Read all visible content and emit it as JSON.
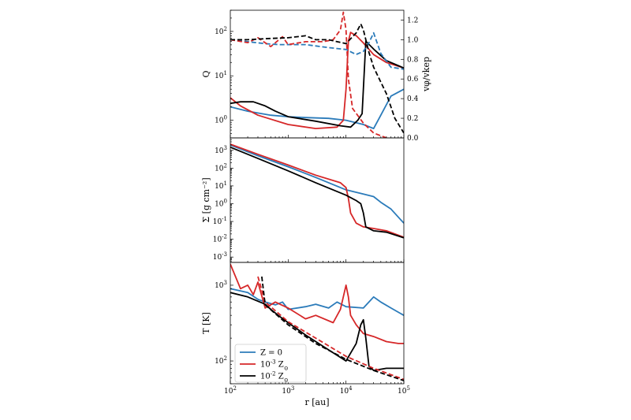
{
  "colors": {
    "z0": "#2b7bba",
    "z3": "#d62728",
    "z2": "#000000"
  },
  "chart_data": [
    {
      "type": "line",
      "panel": "top",
      "xscale": "log",
      "xlim": [
        100,
        100000
      ],
      "yscale": "log",
      "ylim": [
        0.4,
        300
      ],
      "ylabel": "Q",
      "y2label": "v_φ/v_kep",
      "y2lim": [
        0.0,
        1.3
      ],
      "ytick_labels": [
        "10^0",
        "10^1",
        "10^2"
      ],
      "y2tick_labels": [
        "0.0",
        "0.2",
        "0.4",
        "0.6",
        "0.8",
        "1.0",
        "1.2"
      ],
      "series": [
        {
          "name": "Z = 0",
          "quantity": "Q",
          "style": "solid",
          "color": "#2b7bba",
          "x": [
            100,
            200,
            500,
            1000,
            2000,
            5000,
            10000,
            20000,
            30000,
            40000,
            60000,
            100000
          ],
          "y": [
            2.0,
            1.6,
            1.3,
            1.2,
            1.15,
            1.1,
            1.0,
            0.8,
            0.65,
            1.3,
            3.5,
            5.0
          ]
        },
        {
          "name": "10^-3 Z_⊙",
          "quantity": "Q",
          "style": "solid",
          "color": "#d62728",
          "x": [
            100,
            150,
            300,
            1000,
            3000,
            7000,
            9000,
            10000,
            11000,
            12000,
            15000,
            20000,
            30000,
            50000,
            100000
          ],
          "y": [
            3.2,
            2.1,
            1.3,
            0.8,
            0.65,
            0.7,
            1.0,
            5.0,
            60.0,
            95.0,
            80.0,
            55.0,
            30.0,
            20.0,
            15.0
          ]
        },
        {
          "name": "10^-2 Z_⊙",
          "quantity": "Q",
          "style": "solid",
          "color": "#000000",
          "x": [
            100,
            150,
            250,
            400,
            600,
            1000,
            3000,
            8000,
            12000,
            16000,
            19000,
            22000,
            30000,
            50000,
            100000
          ],
          "y": [
            2.4,
            2.6,
            2.6,
            2.1,
            1.6,
            1.2,
            0.95,
            0.75,
            0.7,
            1.0,
            1.4,
            60.0,
            40.0,
            22.0,
            15.0
          ]
        },
        {
          "name": "Z = 0",
          "quantity": "v_phi/v_kep",
          "axis": "right",
          "style": "dashed",
          "color": "#2b7bba",
          "x": [
            100,
            200,
            400,
            700,
            1000,
            2000,
            5000,
            10000,
            15000,
            20000,
            25000,
            30000,
            40000,
            60000,
            100000
          ],
          "y": [
            1.0,
            0.98,
            0.96,
            0.95,
            0.95,
            0.95,
            0.92,
            0.9,
            0.85,
            0.88,
            0.97,
            1.07,
            0.86,
            0.72,
            0.7
          ]
        },
        {
          "name": "10^-3 Z_⊙",
          "quantity": "v_phi/v_kep",
          "axis": "right",
          "style": "dashed",
          "color": "#d62728",
          "x": [
            100,
            200,
            300,
            500,
            800,
            1000,
            2000,
            4000,
            6000,
            8000,
            9000,
            10000,
            11000,
            13000,
            20000,
            30000,
            50000
          ],
          "y": [
            1.0,
            0.97,
            1.02,
            0.93,
            1.03,
            0.95,
            0.98,
            0.98,
            1.0,
            1.1,
            1.28,
            1.1,
            0.6,
            0.3,
            0.15,
            0.05,
            0.0
          ]
        },
        {
          "name": "10^-2 Z_⊙",
          "quantity": "v_phi/v_kep",
          "axis": "right",
          "style": "dashed",
          "color": "#000000",
          "x": [
            100,
            200,
            400,
            1000,
            2000,
            3000,
            5000,
            10000,
            15000,
            18000,
            20000,
            25000,
            30000,
            50000,
            70000,
            100000
          ],
          "y": [
            1.0,
            1.0,
            1.01,
            1.02,
            1.04,
            1.0,
            1.0,
            0.96,
            1.07,
            1.16,
            1.1,
            0.87,
            0.72,
            0.45,
            0.2,
            0.05
          ]
        }
      ]
    },
    {
      "type": "line",
      "panel": "middle",
      "xscale": "log",
      "xlim": [
        100,
        100000
      ],
      "yscale": "log",
      "ylim": [
        0.0005,
        5000
      ],
      "ylabel": "Σ [g cm^-2]",
      "ytick_labels": [
        "10^-3",
        "10^-2",
        "10^-1",
        "10^0",
        "10^1",
        "10^2",
        "10^3"
      ],
      "series": [
        {
          "name": "Z = 0",
          "color": "#2b7bba",
          "x": [
            100,
            300,
            1000,
            3000,
            10000,
            20000,
            30000,
            40000,
            60000,
            100000
          ],
          "y": [
            2000,
            500,
            120,
            30,
            6,
            3.5,
            2.5,
            1.2,
            0.5,
            0.08
          ]
        },
        {
          "name": "10^-3 Z_⊙",
          "color": "#d62728",
          "x": [
            100,
            300,
            1000,
            3000,
            8000,
            10000,
            11000,
            12000,
            15000,
            20000,
            30000,
            50000,
            100000
          ],
          "y": [
            2200,
            600,
            150,
            40,
            15,
            8,
            2,
            0.3,
            0.08,
            0.05,
            0.04,
            0.03,
            0.013
          ]
        },
        {
          "name": "10^-2 Z_⊙",
          "color": "#000000",
          "x": [
            100,
            300,
            1000,
            3000,
            10000,
            15000,
            18000,
            20000,
            22000,
            30000,
            50000,
            100000
          ],
          "y": [
            1500,
            350,
            70,
            15,
            3,
            1.5,
            1.0,
            0.3,
            0.05,
            0.03,
            0.025,
            0.012
          ]
        }
      ]
    },
    {
      "type": "line",
      "panel": "bottom",
      "xscale": "log",
      "xlim": [
        100,
        100000
      ],
      "yscale": "log",
      "ylim": [
        50,
        2000
      ],
      "ylabel": "T [K]",
      "xlabel": "r [au]",
      "ytick_labels": [
        "10^2",
        "10^3"
      ],
      "xtick_labels": [
        "10^2",
        "10^3",
        "10^4",
        "10^5"
      ],
      "series": [
        {
          "name": "Z = 0",
          "style": "solid",
          "color": "#2b7bba",
          "x": [
            100,
            200,
            300,
            400,
            600,
            800,
            1000,
            2000,
            3000,
            5000,
            7000,
            10000,
            20000,
            30000,
            40000,
            60000,
            100000
          ],
          "y": [
            900,
            800,
            650,
            600,
            550,
            600,
            480,
            520,
            560,
            500,
            600,
            520,
            500,
            700,
            600,
            500,
            400
          ]
        },
        {
          "name": "10^-3 Z_⊙",
          "style": "solid",
          "color": "#d62728",
          "x": [
            100,
            150,
            200,
            250,
            300,
            400,
            600,
            1000,
            2000,
            3000,
            6000,
            8000,
            10000,
            11000,
            12000,
            15000,
            20000,
            30000,
            50000,
            80000,
            100000
          ],
          "y": [
            1900,
            900,
            1000,
            750,
            1100,
            500,
            600,
            500,
            360,
            400,
            320,
            480,
            1000,
            700,
            400,
            300,
            230,
            210,
            180,
            170,
            170
          ]
        },
        {
          "name": "10^-2 Z_⊙",
          "style": "solid",
          "color": "#000000",
          "x": [
            100,
            200,
            400,
            500,
            700,
            1000,
            2000,
            5000,
            10000,
            15000,
            18000,
            20000,
            22000,
            25000,
            30000,
            50000,
            100000
          ],
          "y": [
            800,
            700,
            560,
            480,
            390,
            320,
            220,
            140,
            100,
            170,
            300,
            350,
            200,
            85,
            75,
            80,
            80
          ]
        },
        {
          "name": "10^-3 Z_⊙",
          "style": "dashed",
          "color": "#d62728",
          "x": [
            300,
            400,
            1000,
            3000,
            10000,
            30000,
            100000
          ],
          "y": [
            1300,
            600,
            330,
            200,
            115,
            80,
            57
          ]
        },
        {
          "name": "10^-2 Z_⊙",
          "style": "dashed",
          "color": "#000000",
          "x": [
            350,
            400,
            1000,
            3000,
            10000,
            30000,
            100000
          ],
          "y": [
            1300,
            550,
            300,
            170,
            105,
            75,
            55
          ]
        }
      ],
      "legend": {
        "placement": "lower-left",
        "entries": [
          {
            "label": "Z = 0",
            "color": "#2b7bba"
          },
          {
            "label": "10^-3 Z_⊙",
            "color": "#d62728"
          },
          {
            "label": "10^-2 Z_⊙",
            "color": "#000000"
          }
        ]
      }
    }
  ]
}
